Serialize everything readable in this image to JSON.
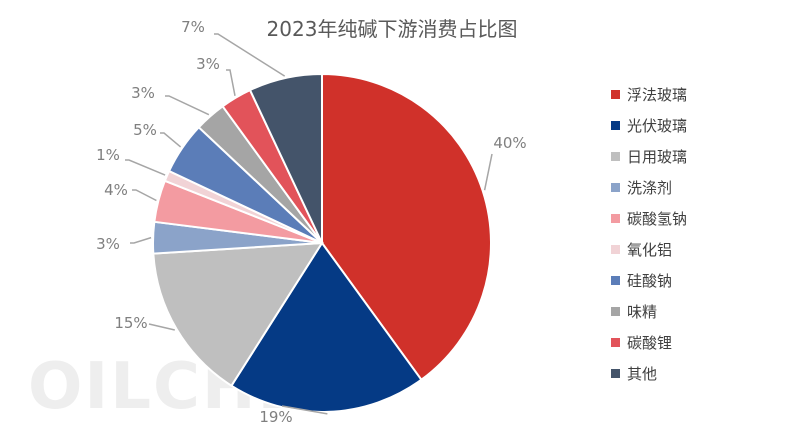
{
  "chart_data": {
    "type": "pie",
    "title": "2023年纯碱下游消费占比图",
    "watermark": "OILCHE",
    "slices": [
      {
        "name": "浮法玻璃",
        "value": 40,
        "label": "40%",
        "color": "#d0312a"
      },
      {
        "name": "光伏玻璃",
        "value": 19,
        "label": "19%",
        "color": "#053a85"
      },
      {
        "name": "日用玻璃",
        "value": 15,
        "label": "15%",
        "color": "#bfbfbf"
      },
      {
        "name": "洗涤剂",
        "value": 3,
        "label": "3%",
        "color": "#8ba3c9"
      },
      {
        "name": "碳酸氢钠",
        "value": 4,
        "label": "4%",
        "color": "#f39ba1"
      },
      {
        "name": "氧化铝",
        "value": 1,
        "label": "1%",
        "color": "#f1d3d6"
      },
      {
        "name": "硅酸钠",
        "value": 5,
        "label": "5%",
        "color": "#5b7db8"
      },
      {
        "name": "味精",
        "value": 3,
        "label": "3%",
        "color": "#a5a5a5"
      },
      {
        "name": "碳酸锂",
        "value": 3,
        "label": "3%",
        "color": "#e2535a"
      },
      {
        "name": "其他",
        "value": 7,
        "label": "7%",
        "color": "#44546a"
      }
    ],
    "legend_position": "right"
  }
}
